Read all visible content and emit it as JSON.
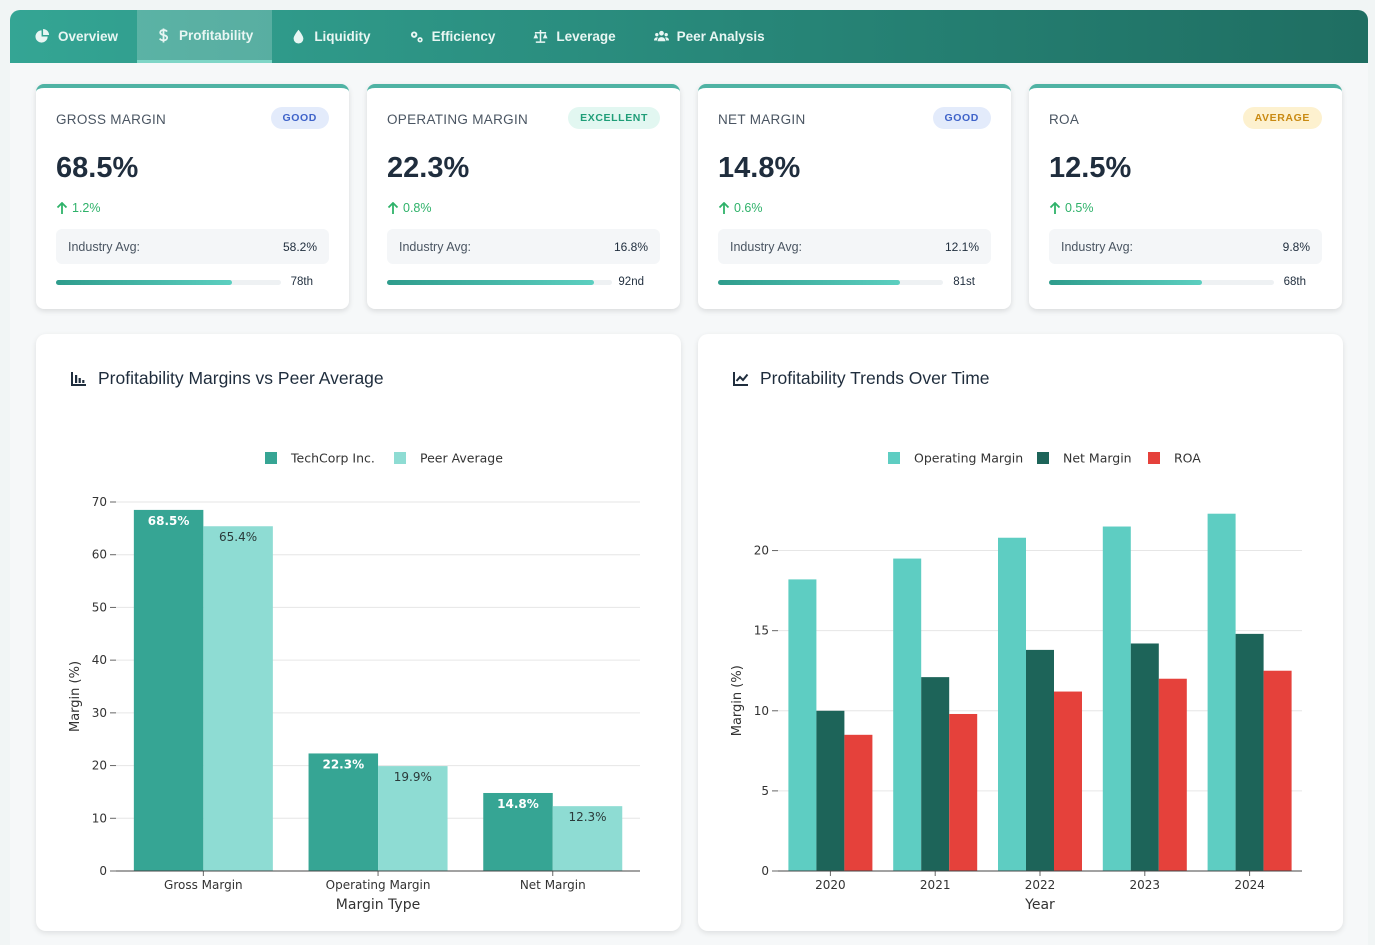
{
  "tabs": [
    {
      "label": "Overview",
      "icon": "pie-chart-icon"
    },
    {
      "label": "Profitability",
      "icon": "dollar-icon",
      "active": true
    },
    {
      "label": "Liquidity",
      "icon": "droplet-icon"
    },
    {
      "label": "Efficiency",
      "icon": "gears-icon"
    },
    {
      "label": "Leverage",
      "icon": "balance-scale-icon"
    },
    {
      "label": "Peer Analysis",
      "icon": "users-icon"
    }
  ],
  "cards": [
    {
      "label": "GROSS MARGIN",
      "badge": "GOOD",
      "badge_style": "good",
      "value": "68.5%",
      "change": "1.2%",
      "industry_label": "Industry Avg:",
      "industry_value": "58.2%",
      "percentile": 0.78,
      "rank": "78th"
    },
    {
      "label": "OPERATING MARGIN",
      "badge": "EXCELLENT",
      "badge_style": "excellent",
      "value": "22.3%",
      "change": "0.8%",
      "industry_label": "Industry Avg:",
      "industry_value": "16.8%",
      "percentile": 0.92,
      "rank": "92nd"
    },
    {
      "label": "NET MARGIN",
      "badge": "GOOD",
      "badge_style": "good",
      "value": "14.8%",
      "change": "0.6%",
      "industry_label": "Industry Avg:",
      "industry_value": "12.1%",
      "percentile": 0.81,
      "rank": "81st"
    },
    {
      "label": "ROA",
      "badge": "AVERAGE",
      "badge_style": "average",
      "value": "12.5%",
      "change": "0.5%",
      "industry_label": "Industry Avg:",
      "industry_value": "9.8%",
      "percentile": 0.68,
      "rank": "68th"
    }
  ],
  "colors": {
    "badge_good_bg": "#e3ebfb",
    "badge_good_fg": "#3f63c9",
    "badge_excellent_bg": "#e2f7f1",
    "badge_excellent_fg": "#1f9e78",
    "badge_average_bg": "#fdf1cf",
    "badge_average_fg": "#c98a12"
  },
  "chart_data": [
    {
      "type": "bar",
      "title": "Profitability Margins vs Peer Average",
      "title_icon": "bar-chart-icon",
      "xlabel": "Margin Type",
      "ylabel": "Margin (%)",
      "ylim": [
        0,
        70
      ],
      "yticks": [
        0,
        10,
        20,
        30,
        40,
        50,
        60,
        70
      ],
      "grid": true,
      "legend_position": "top",
      "categories": [
        "Gross Margin",
        "Operating Margin",
        "Net Margin"
      ],
      "series": [
        {
          "name": "TechCorp Inc.",
          "values": [
            68.5,
            22.3,
            14.8
          ],
          "labels": [
            "68.5%",
            "22.3%",
            "14.8%"
          ],
          "color": "#36a594"
        },
        {
          "name": "Peer Average",
          "values": [
            65.4,
            19.9,
            12.3
          ],
          "labels": [
            "65.4%",
            "19.9%",
            "12.3%"
          ],
          "color": "#8edcd3"
        }
      ]
    },
    {
      "type": "bar",
      "title": "Profitability Trends Over Time",
      "title_icon": "line-chart-icon",
      "xlabel": "Year",
      "ylabel": "Margin (%)",
      "ylim": [
        0,
        22.5
      ],
      "yticks": [
        0,
        5,
        10,
        15,
        20
      ],
      "grid": true,
      "legend_position": "top",
      "categories": [
        "2020",
        "2021",
        "2022",
        "2023",
        "2024"
      ],
      "series": [
        {
          "name": "Operating Margin",
          "values": [
            18.2,
            19.5,
            20.8,
            21.5,
            22.3
          ],
          "color": "#5ecdc2"
        },
        {
          "name": "Net Margin",
          "values": [
            10.0,
            12.1,
            13.8,
            14.2,
            14.8
          ],
          "color": "#1d6459"
        },
        {
          "name": "ROA",
          "values": [
            8.5,
            9.8,
            11.2,
            12.0,
            12.5
          ],
          "color": "#e5413b"
        }
      ]
    }
  ]
}
